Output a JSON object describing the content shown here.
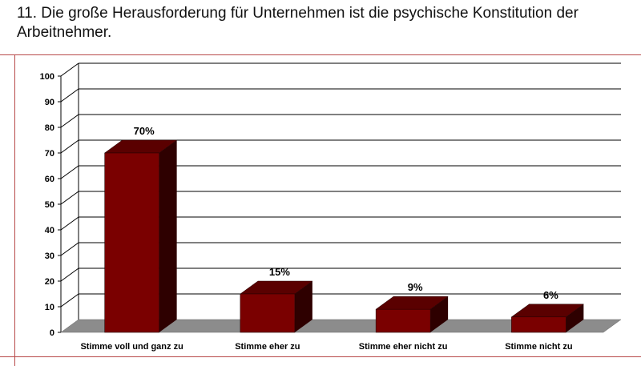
{
  "title": "11. Die große Herausforderung für Unternehmen ist die psychische Konstitution der Arbeitnehmer.",
  "colors": {
    "bar_front": "#7a0000",
    "bar_side": "#2e0000",
    "bar_top": "#5a0000",
    "floor": "#8c8c8c",
    "grid": "#000000",
    "rule": "#b84a4a"
  },
  "chart_data": {
    "type": "bar",
    "categories": [
      "Stimme voll und ganz zu",
      "Stimme eher zu",
      "Stimme eher nicht zu",
      "Stimme nicht zu"
    ],
    "values": [
      70,
      15,
      9,
      6
    ],
    "data_labels": [
      "70%",
      "15%",
      "9%",
      "6%"
    ],
    "ylim": [
      0,
      100
    ],
    "yticks": [
      0,
      10,
      20,
      30,
      40,
      50,
      60,
      70,
      80,
      90,
      100
    ],
    "grid": true,
    "legend": "none",
    "style": "3d-bar"
  }
}
